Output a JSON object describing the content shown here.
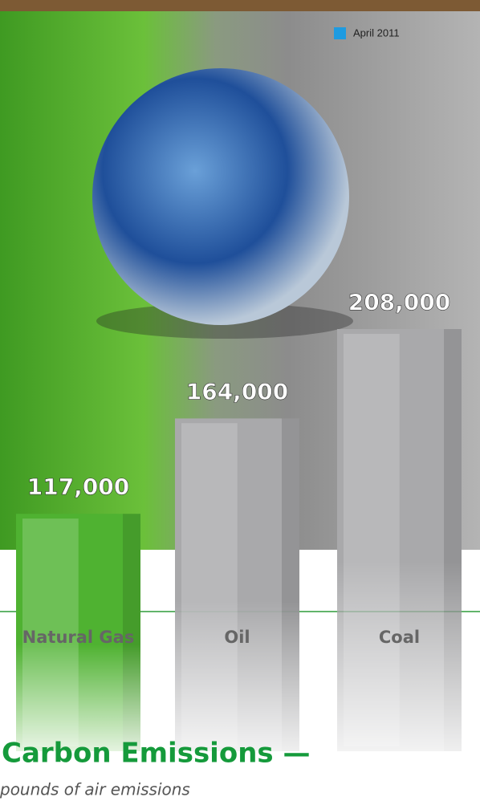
{
  "chart_data": {
    "type": "bar",
    "title": "Carbon Emissions —",
    "subtitle": "pounds of air emissions",
    "legend": "April 2011",
    "legend_color": "#1e9be0",
    "categories": [
      "Natural Gas",
      "Oil",
      "Coal"
    ],
    "values": [
      117000,
      164000,
      208000
    ],
    "value_labels": [
      "117,000",
      "164,000",
      "208,000"
    ],
    "colors": [
      "#4fb231",
      "#a9a9ab",
      "#a9a9ab"
    ]
  }
}
